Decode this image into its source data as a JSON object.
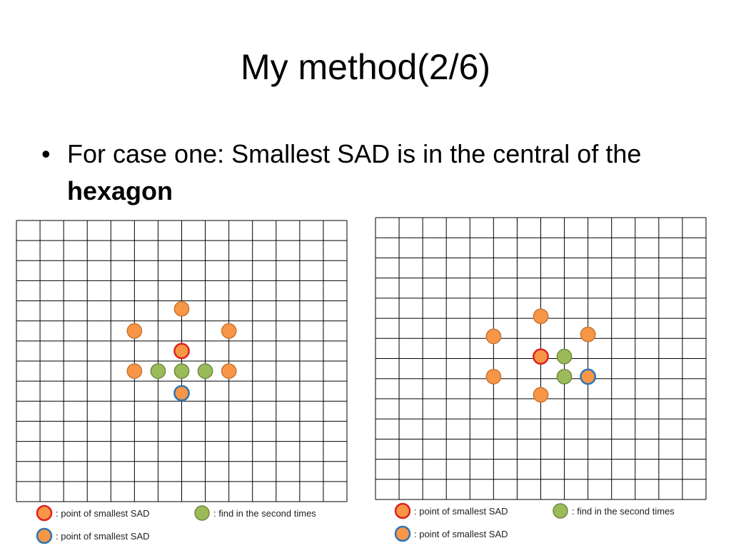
{
  "slide": {
    "title": "My method(2/6)",
    "bullet_prefix": "For case one: Smallest SAD is in the central of the ",
    "bullet_bold": "hexagon"
  },
  "colors": {
    "orange_fill": "#F79646",
    "orange_stroke": "#C87532",
    "green_fill": "#9BBB59",
    "green_stroke": "#71893F",
    "red_outline": "#E02020",
    "blue_outline": "#2E75B6",
    "grid_line": "#000000"
  },
  "diagrams": [
    {
      "name": "left",
      "points": [
        {
          "col": 7,
          "row": 4.4,
          "type": "orange"
        },
        {
          "col": 5,
          "row": 5.5,
          "type": "orange"
        },
        {
          "col": 9,
          "row": 5.5,
          "type": "orange"
        },
        {
          "col": 7,
          "row": 6.5,
          "type": "red"
        },
        {
          "col": 5,
          "row": 7.5,
          "type": "orange"
        },
        {
          "col": 6,
          "row": 7.5,
          "type": "green"
        },
        {
          "col": 7,
          "row": 7.5,
          "type": "green"
        },
        {
          "col": 8,
          "row": 7.5,
          "type": "green"
        },
        {
          "col": 9,
          "row": 7.5,
          "type": "orange"
        },
        {
          "col": 7,
          "row": 8.6,
          "type": "blue"
        }
      ],
      "legend": [
        {
          "type": "red",
          "text": ": point  of smallest SAD"
        },
        {
          "type": "green",
          "text": ": find  in  the  second  times"
        },
        {
          "type": "blue",
          "text": ": point  of smallest SAD"
        }
      ]
    },
    {
      "name": "right",
      "points": [
        {
          "col": 7,
          "row": 4.9,
          "type": "orange"
        },
        {
          "col": 5,
          "row": 5.9,
          "type": "orange"
        },
        {
          "col": 9,
          "row": 5.8,
          "type": "orange"
        },
        {
          "col": 7,
          "row": 6.9,
          "type": "red"
        },
        {
          "col": 8,
          "row": 6.9,
          "type": "green"
        },
        {
          "col": 5,
          "row": 7.9,
          "type": "orange"
        },
        {
          "col": 8,
          "row": 7.9,
          "type": "green"
        },
        {
          "col": 9,
          "row": 7.9,
          "type": "blue"
        },
        {
          "col": 7,
          "row": 8.8,
          "type": "orange"
        }
      ],
      "legend": [
        {
          "type": "red",
          "text": ": point  of  smallest SAD"
        },
        {
          "type": "green",
          "text": ": find  in  the  second  times"
        },
        {
          "type": "blue",
          "text": ": point  of  smallest SAD"
        }
      ]
    }
  ]
}
